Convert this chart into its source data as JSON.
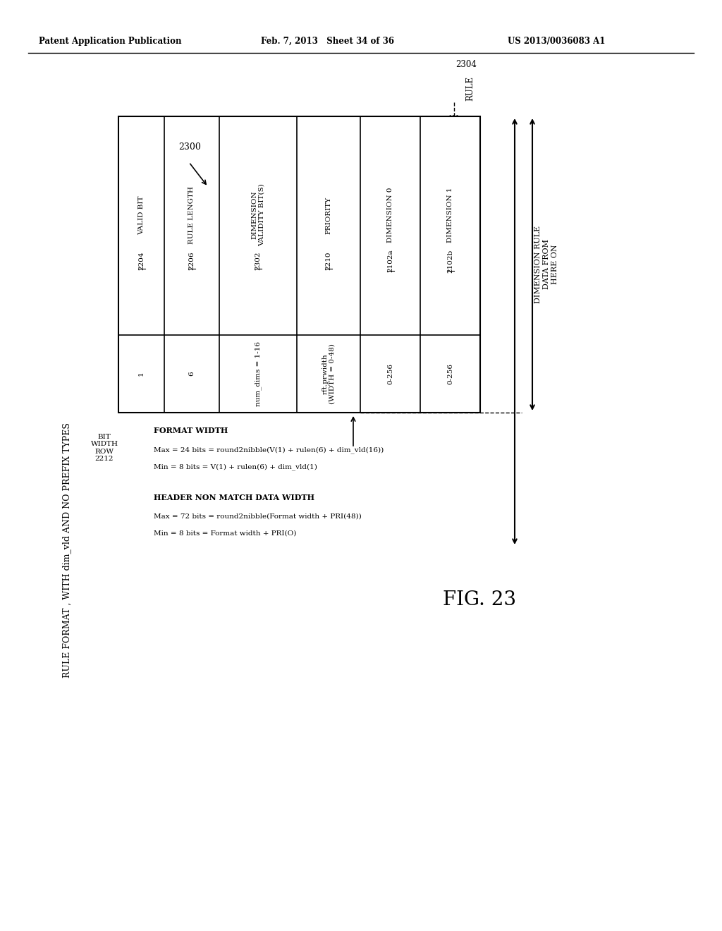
{
  "header_left": "Patent Application Publication",
  "header_mid": "Feb. 7, 2013   Sheet 34 of 36",
  "header_right": "US 2013/0036083 A1",
  "title": "RULE FORMAT , WITH dim_vld AND NO PREFIX TYPES",
  "fig_label": "FIG. 23",
  "diagram_label": "2300",
  "rule_label": "2304",
  "rule_text": "RULE",
  "col_headers": [
    "VALID BIT\n2204",
    "RULE LENGTH\n2206",
    "DIMENSION\nVALIDITY BIT(S)\n2302",
    "PRIORITY\n2210",
    "DIMENSION 0\n2102a",
    "DIMENSION 1\n2102b"
  ],
  "col_values": [
    "1",
    "6",
    "num_dims = 1-16",
    "rft.prwidth\n(WIDTH = 0-48)",
    "0-256",
    "0-256"
  ],
  "col_refs": [
    "2204",
    "2206",
    "2302",
    "2210",
    "2102a",
    "2102b"
  ],
  "col_header_texts": [
    "VALID BIT",
    "RULE LENGTH",
    "DIMENSION\nVALIDITY BIT(S)",
    "PRIORITY",
    "DIMENSION 0",
    "DIMENSION 1"
  ],
  "bit_width_label": "BIT\nWIDTH\nROW\n2212",
  "format_width_title": "FORMAT WIDTH",
  "format_width_lines": [
    "Max = 24 bits = round2nibble(V(1) + rulen(6) + dim_vld(16))",
    "Min = 8 bits = V(1) + rulen(6) + dim_vld(1)"
  ],
  "header_non_match_title": "HEADER NON MATCH DATA WIDTH",
  "header_non_match_lines": [
    "Max = 72 bits = round2nibble(Format width + PRI(48))",
    "Min = 8 bits = Format width + PRI(O)"
  ],
  "dimension_rule_text": "DIMENSION RULE\nDATA FROM\nHERE ON",
  "background": "#ffffff"
}
